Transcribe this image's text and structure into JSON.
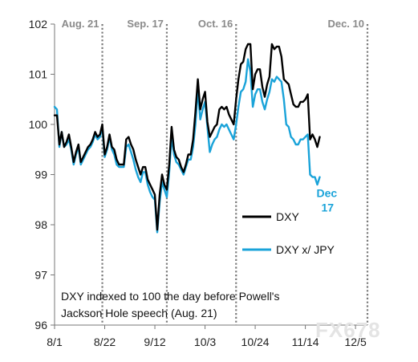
{
  "chart_data": {
    "type": "line",
    "ylim": [
      96,
      102
    ],
    "y_ticks": [
      96,
      97,
      98,
      99,
      100,
      101,
      102
    ],
    "x_tick_labels": [
      "8/1",
      "8/22",
      "9/12",
      "10/3",
      "10/24",
      "11/14",
      "12/5"
    ],
    "grid": false,
    "legend_position": "center-right",
    "event_lines": [
      {
        "label": "Aug. 21",
        "day": 20
      },
      {
        "label": "Sep. 17",
        "day": 47
      },
      {
        "label": "Oct. 16",
        "day": 76
      },
      {
        "label": "Dec. 10",
        "day": 131
      }
    ],
    "annotation": [
      "DXY indexed to 100 the day before Powell's",
      "Jackson Hole speech (Aug. 21)"
    ],
    "end_label": "Dec 17",
    "series": [
      {
        "name": "DXY",
        "color": "#000000",
        "points": [
          [
            0,
            100.18
          ],
          [
            1,
            100.18
          ],
          [
            2,
            99.6
          ],
          [
            3,
            99.85
          ],
          [
            4,
            99.55
          ],
          [
            5,
            99.65
          ],
          [
            6,
            99.8
          ],
          [
            7,
            99.55
          ],
          [
            8,
            99.25
          ],
          [
            9,
            99.45
          ],
          [
            10,
            99.6
          ],
          [
            11,
            99.25
          ],
          [
            12,
            99.35
          ],
          [
            13,
            99.45
          ],
          [
            14,
            99.55
          ],
          [
            15,
            99.6
          ],
          [
            16,
            99.7
          ],
          [
            17,
            99.85
          ],
          [
            18,
            99.75
          ],
          [
            19,
            99.8
          ],
          [
            20,
            100.0
          ],
          [
            21,
            99.4
          ],
          [
            22,
            99.55
          ],
          [
            23,
            99.8
          ],
          [
            24,
            99.55
          ],
          [
            25,
            99.5
          ],
          [
            26,
            99.3
          ],
          [
            27,
            99.2
          ],
          [
            28,
            99.2
          ],
          [
            29,
            99.2
          ],
          [
            30,
            99.7
          ],
          [
            31,
            99.75
          ],
          [
            32,
            99.6
          ],
          [
            33,
            99.5
          ],
          [
            34,
            99.3
          ],
          [
            35,
            99.15
          ],
          [
            36,
            99.0
          ],
          [
            37,
            99.15
          ],
          [
            38,
            99.15
          ],
          [
            39,
            98.9
          ],
          [
            40,
            98.8
          ],
          [
            41,
            98.7
          ],
          [
            42,
            98.6
          ],
          [
            43,
            97.9
          ],
          [
            44,
            98.6
          ],
          [
            45,
            99.0
          ],
          [
            46,
            98.8
          ],
          [
            47,
            98.7
          ],
          [
            48,
            99.2
          ],
          [
            49,
            99.95
          ],
          [
            50,
            99.5
          ],
          [
            51,
            99.35
          ],
          [
            52,
            99.3
          ],
          [
            53,
            99.15
          ],
          [
            54,
            99.05
          ],
          [
            55,
            99.2
          ],
          [
            56,
            99.4
          ],
          [
            57,
            99.4
          ],
          [
            58,
            99.7
          ],
          [
            59,
            100.25
          ],
          [
            60,
            100.9
          ],
          [
            61,
            100.3
          ],
          [
            62,
            100.5
          ],
          [
            63,
            100.65
          ],
          [
            64,
            100.05
          ],
          [
            65,
            99.75
          ],
          [
            66,
            99.85
          ],
          [
            67,
            99.95
          ],
          [
            68,
            100.0
          ],
          [
            69,
            100.3
          ],
          [
            70,
            100.35
          ],
          [
            71,
            100.3
          ],
          [
            72,
            100.35
          ],
          [
            73,
            100.2
          ],
          [
            74,
            100.1
          ],
          [
            75,
            100.0
          ],
          [
            76,
            100.5
          ],
          [
            77,
            100.9
          ],
          [
            78,
            101.2
          ],
          [
            79,
            101.25
          ],
          [
            80,
            101.5
          ],
          [
            81,
            101.6
          ],
          [
            82,
            101.6
          ],
          [
            83,
            100.7
          ],
          [
            84,
            101.0
          ],
          [
            85,
            101.1
          ],
          [
            86,
            101.1
          ],
          [
            87,
            100.75
          ],
          [
            88,
            100.55
          ],
          [
            89,
            100.8
          ],
          [
            90,
            100.95
          ],
          [
            91,
            101.6
          ],
          [
            92,
            101.5
          ],
          [
            93,
            101.55
          ],
          [
            94,
            101.55
          ],
          [
            95,
            101.35
          ],
          [
            96,
            100.9
          ],
          [
            97,
            100.85
          ],
          [
            98,
            100.8
          ],
          [
            99,
            100.6
          ],
          [
            100,
            100.4
          ],
          [
            101,
            100.35
          ],
          [
            102,
            100.35
          ],
          [
            103,
            100.45
          ],
          [
            104,
            100.45
          ],
          [
            105,
            100.5
          ],
          [
            106,
            100.6
          ],
          [
            107,
            99.7
          ],
          [
            108,
            99.8
          ],
          [
            109,
            99.7
          ],
          [
            110,
            99.55
          ],
          [
            111,
            99.75
          ]
        ]
      },
      {
        "name": "DXY x/ JPY",
        "color": "#1aa3d9",
        "points": [
          [
            0,
            100.35
          ],
          [
            1,
            100.3
          ],
          [
            2,
            99.55
          ],
          [
            3,
            99.85
          ],
          [
            4,
            99.55
          ],
          [
            5,
            99.6
          ],
          [
            6,
            99.7
          ],
          [
            7,
            99.5
          ],
          [
            8,
            99.2
          ],
          [
            9,
            99.4
          ],
          [
            10,
            99.55
          ],
          [
            11,
            99.2
          ],
          [
            12,
            99.3
          ],
          [
            13,
            99.4
          ],
          [
            14,
            99.5
          ],
          [
            15,
            99.55
          ],
          [
            16,
            99.65
          ],
          [
            17,
            99.8
          ],
          [
            18,
            99.7
          ],
          [
            19,
            99.75
          ],
          [
            20,
            99.95
          ],
          [
            21,
            99.35
          ],
          [
            22,
            99.5
          ],
          [
            23,
            99.75
          ],
          [
            24,
            99.5
          ],
          [
            25,
            99.4
          ],
          [
            26,
            99.2
          ],
          [
            27,
            99.15
          ],
          [
            28,
            99.15
          ],
          [
            29,
            99.15
          ],
          [
            30,
            99.55
          ],
          [
            31,
            99.6
          ],
          [
            32,
            99.45
          ],
          [
            33,
            99.3
          ],
          [
            34,
            99.1
          ],
          [
            35,
            98.95
          ],
          [
            36,
            98.85
          ],
          [
            37,
            99.05
          ],
          [
            38,
            99.05
          ],
          [
            39,
            98.8
          ],
          [
            40,
            98.65
          ],
          [
            41,
            98.55
          ],
          [
            42,
            98.5
          ],
          [
            43,
            97.85
          ],
          [
            44,
            98.45
          ],
          [
            45,
            98.85
          ],
          [
            46,
            98.7
          ],
          [
            47,
            98.55
          ],
          [
            48,
            99.05
          ],
          [
            49,
            99.75
          ],
          [
            50,
            99.4
          ],
          [
            51,
            99.25
          ],
          [
            52,
            99.2
          ],
          [
            53,
            99.1
          ],
          [
            54,
            99.0
          ],
          [
            55,
            99.15
          ],
          [
            56,
            99.3
          ],
          [
            57,
            99.3
          ],
          [
            58,
            99.55
          ],
          [
            59,
            100.0
          ],
          [
            60,
            100.7
          ],
          [
            61,
            100.1
          ],
          [
            62,
            100.3
          ],
          [
            63,
            100.45
          ],
          [
            64,
            99.95
          ],
          [
            65,
            99.45
          ],
          [
            66,
            99.6
          ],
          [
            67,
            99.7
          ],
          [
            68,
            99.75
          ],
          [
            69,
            99.9
          ],
          [
            70,
            100.0
          ],
          [
            71,
            99.95
          ],
          [
            72,
            100.0
          ],
          [
            73,
            99.9
          ],
          [
            74,
            99.8
          ],
          [
            75,
            99.7
          ],
          [
            76,
            100.0
          ],
          [
            77,
            100.35
          ],
          [
            78,
            100.65
          ],
          [
            79,
            100.7
          ],
          [
            80,
            100.85
          ],
          [
            81,
            101.3
          ],
          [
            82,
            101.05
          ],
          [
            83,
            100.35
          ],
          [
            84,
            100.6
          ],
          [
            85,
            100.7
          ],
          [
            86,
            100.7
          ],
          [
            87,
            100.45
          ],
          [
            88,
            100.3
          ],
          [
            89,
            100.5
          ],
          [
            90,
            100.65
          ],
          [
            91,
            100.9
          ],
          [
            92,
            100.85
          ],
          [
            93,
            100.95
          ],
          [
            94,
            100.9
          ],
          [
            95,
            100.85
          ],
          [
            96,
            100.5
          ],
          [
            97,
            100.0
          ],
          [
            98,
            99.95
          ],
          [
            99,
            99.75
          ],
          [
            100,
            99.7
          ],
          [
            101,
            99.6
          ],
          [
            102,
            99.6
          ],
          [
            103,
            99.7
          ],
          [
            104,
            99.7
          ],
          [
            105,
            99.75
          ],
          [
            106,
            99.8
          ],
          [
            107,
            99.0
          ],
          [
            108,
            98.95
          ],
          [
            109,
            98.95
          ],
          [
            110,
            98.8
          ],
          [
            111,
            98.95
          ]
        ]
      }
    ]
  },
  "watermark": "FX678"
}
